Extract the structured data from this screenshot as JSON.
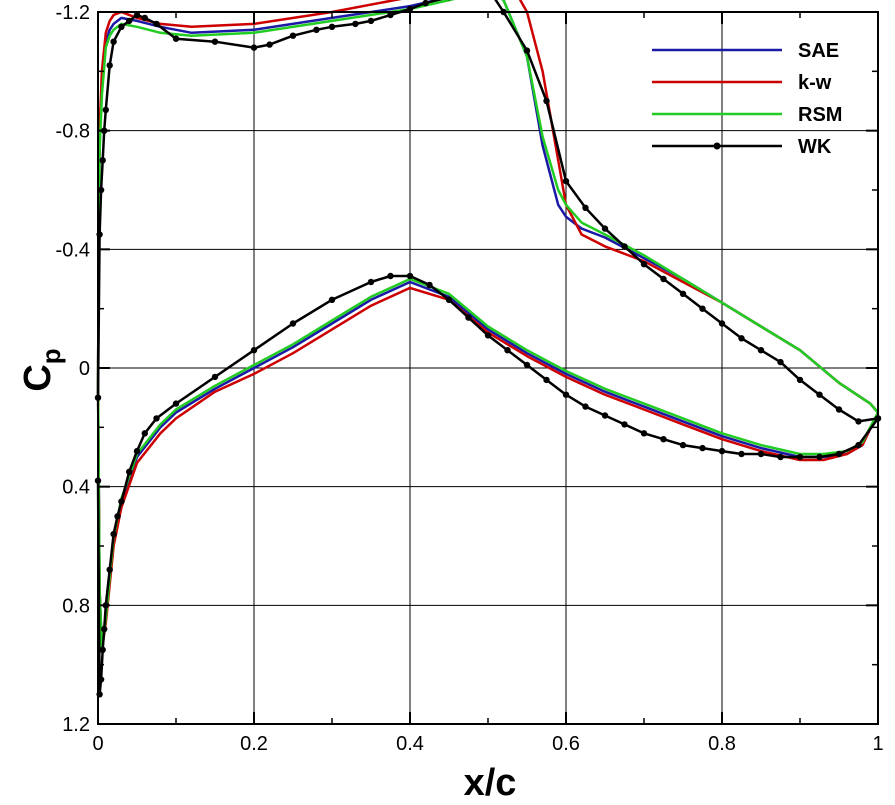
{
  "chart_data": {
    "type": "line",
    "title": "",
    "xlabel": "x/c",
    "ylabel": "C",
    "ylabel_subscript": "p",
    "xlim": [
      0,
      1
    ],
    "ylim": [
      1.2,
      -1.2
    ],
    "y_inverted": true,
    "grid": true,
    "legend_position": "top-right",
    "x_ticks": [
      0,
      0.2,
      0.4,
      0.6,
      0.8,
      1
    ],
    "x_tick_labels": [
      "0",
      "0.2",
      "0.4",
      "0.6",
      "0.8",
      "1"
    ],
    "y_ticks": [
      -1.2,
      -0.8,
      -0.4,
      0,
      0.4,
      0.8,
      1.2
    ],
    "y_tick_labels": [
      "-1.2",
      "-0.8",
      "-0.4",
      "0",
      "0.4",
      "0.8",
      "1.2"
    ],
    "series": [
      {
        "name": "SAE",
        "color": "#1a1aa6",
        "markers": false,
        "upper": {
          "x": [
            0,
            0.002,
            0.005,
            0.01,
            0.015,
            0.02,
            0.03,
            0.05,
            0.08,
            0.12,
            0.2,
            0.3,
            0.4,
            0.45,
            0.5,
            0.52,
            0.55,
            0.57,
            0.59,
            0.6,
            0.62,
            0.65,
            0.7,
            0.75,
            0.8,
            0.85,
            0.9,
            0.95,
            0.99,
            1
          ],
          "y": [
            0.05,
            -0.75,
            -0.95,
            -1.1,
            -1.14,
            -1.16,
            -1.18,
            -1.17,
            -1.15,
            -1.13,
            -1.14,
            -1.18,
            -1.22,
            -1.25,
            -1.28,
            -1.24,
            -1.05,
            -0.75,
            -0.55,
            -0.51,
            -0.47,
            -0.44,
            -0.37,
            -0.3,
            -0.22,
            -0.14,
            -0.06,
            0.05,
            0.12,
            0.15
          ]
        },
        "lower": {
          "x": [
            0,
            0.002,
            0.005,
            0.01,
            0.02,
            0.03,
            0.05,
            0.08,
            0.1,
            0.15,
            0.2,
            0.25,
            0.3,
            0.35,
            0.4,
            0.45,
            0.5,
            0.55,
            0.6,
            0.65,
            0.7,
            0.75,
            0.8,
            0.85,
            0.9,
            0.93,
            0.96,
            0.98,
            1
          ],
          "y": [
            0.05,
            0.75,
            0.95,
            0.85,
            0.58,
            0.45,
            0.3,
            0.2,
            0.15,
            0.07,
            0.0,
            -0.07,
            -0.15,
            -0.23,
            -0.29,
            -0.24,
            -0.13,
            -0.05,
            0.02,
            0.08,
            0.13,
            0.18,
            0.23,
            0.27,
            0.3,
            0.3,
            0.29,
            0.26,
            0.15
          ]
        }
      },
      {
        "name": "k-w",
        "color": "#cc0000",
        "markers": false,
        "upper": {
          "x": [
            0,
            0.002,
            0.005,
            0.01,
            0.015,
            0.02,
            0.03,
            0.05,
            0.08,
            0.12,
            0.2,
            0.3,
            0.4,
            0.45,
            0.5,
            0.52,
            0.535,
            0.55,
            0.57,
            0.59,
            0.6,
            0.62,
            0.65,
            0.7,
            0.75,
            0.8,
            0.85,
            0.9,
            0.95,
            0.99,
            1
          ],
          "y": [
            0.05,
            -0.8,
            -1.0,
            -1.13,
            -1.17,
            -1.19,
            -1.2,
            -1.18,
            -1.16,
            -1.15,
            -1.16,
            -1.2,
            -1.25,
            -1.28,
            -1.31,
            -1.3,
            -1.27,
            -1.2,
            -1.0,
            -0.7,
            -0.55,
            -0.45,
            -0.41,
            -0.36,
            -0.29,
            -0.22,
            -0.14,
            -0.06,
            0.05,
            0.12,
            0.15
          ]
        },
        "lower": {
          "x": [
            0,
            0.002,
            0.005,
            0.01,
            0.02,
            0.03,
            0.05,
            0.08,
            0.1,
            0.15,
            0.2,
            0.25,
            0.3,
            0.35,
            0.4,
            0.45,
            0.5,
            0.55,
            0.6,
            0.65,
            0.7,
            0.75,
            0.8,
            0.85,
            0.9,
            0.93,
            0.96,
            0.98,
            1
          ],
          "y": [
            0.05,
            0.75,
            0.95,
            0.86,
            0.6,
            0.47,
            0.32,
            0.22,
            0.17,
            0.08,
            0.02,
            -0.05,
            -0.13,
            -0.21,
            -0.27,
            -0.23,
            -0.12,
            -0.04,
            0.03,
            0.09,
            0.14,
            0.19,
            0.24,
            0.28,
            0.31,
            0.31,
            0.29,
            0.26,
            0.15
          ]
        }
      },
      {
        "name": "RSM",
        "color": "#22cc22",
        "markers": false,
        "upper": {
          "x": [
            0,
            0.002,
            0.005,
            0.01,
            0.015,
            0.02,
            0.03,
            0.05,
            0.08,
            0.12,
            0.2,
            0.3,
            0.4,
            0.45,
            0.5,
            0.52,
            0.55,
            0.57,
            0.59,
            0.6,
            0.62,
            0.65,
            0.7,
            0.75,
            0.8,
            0.85,
            0.9,
            0.95,
            0.99,
            1
          ],
          "y": [
            0.05,
            -0.73,
            -0.92,
            -1.08,
            -1.12,
            -1.14,
            -1.16,
            -1.15,
            -1.13,
            -1.12,
            -1.13,
            -1.17,
            -1.21,
            -1.24,
            -1.27,
            -1.24,
            -1.05,
            -0.78,
            -0.6,
            -0.55,
            -0.49,
            -0.45,
            -0.38,
            -0.3,
            -0.22,
            -0.14,
            -0.06,
            0.05,
            0.12,
            0.15
          ]
        },
        "lower": {
          "x": [
            0,
            0.002,
            0.005,
            0.01,
            0.02,
            0.03,
            0.05,
            0.08,
            0.1,
            0.15,
            0.2,
            0.25,
            0.3,
            0.35,
            0.4,
            0.45,
            0.5,
            0.55,
            0.6,
            0.65,
            0.7,
            0.75,
            0.8,
            0.85,
            0.9,
            0.93,
            0.96,
            0.98,
            1
          ],
          "y": [
            0.05,
            0.75,
            0.95,
            0.84,
            0.57,
            0.44,
            0.29,
            0.19,
            0.14,
            0.06,
            -0.01,
            -0.08,
            -0.16,
            -0.24,
            -0.3,
            -0.25,
            -0.14,
            -0.06,
            0.01,
            0.07,
            0.12,
            0.17,
            0.22,
            0.26,
            0.29,
            0.29,
            0.28,
            0.25,
            0.15
          ]
        }
      },
      {
        "name": "WK",
        "color": "#000000",
        "markers": true,
        "upper": {
          "x": [
            0,
            0.002,
            0.004,
            0.006,
            0.008,
            0.01,
            0.015,
            0.02,
            0.03,
            0.04,
            0.05,
            0.06,
            0.075,
            0.1,
            0.15,
            0.2,
            0.22,
            0.25,
            0.28,
            0.3,
            0.33,
            0.35,
            0.375,
            0.4,
            0.42,
            0.45,
            0.47,
            0.5,
            0.52,
            0.55,
            0.575,
            0.6,
            0.625,
            0.65,
            0.675,
            0.7,
            0.725,
            0.75,
            0.775,
            0.8,
            0.825,
            0.85,
            0.875,
            0.9,
            0.925,
            0.95,
            0.975,
            1
          ],
          "y": [
            0.1,
            -0.45,
            -0.6,
            -0.7,
            -0.8,
            -0.87,
            -1.02,
            -1.1,
            -1.15,
            -1.17,
            -1.19,
            -1.18,
            -1.16,
            -1.11,
            -1.1,
            -1.08,
            -1.09,
            -1.12,
            -1.14,
            -1.15,
            -1.16,
            -1.17,
            -1.19,
            -1.21,
            -1.23,
            -1.25,
            -1.26,
            -1.28,
            -1.2,
            -1.07,
            -0.9,
            -0.63,
            -0.54,
            -0.47,
            -0.41,
            -0.35,
            -0.3,
            -0.25,
            -0.2,
            -0.15,
            -0.1,
            -0.06,
            -0.02,
            0.04,
            0.09,
            0.14,
            0.18,
            0.17
          ]
        },
        "lower": {
          "x": [
            0,
            0.002,
            0.004,
            0.006,
            0.008,
            0.01,
            0.015,
            0.02,
            0.025,
            0.03,
            0.04,
            0.05,
            0.06,
            0.075,
            0.1,
            0.15,
            0.2,
            0.25,
            0.3,
            0.35,
            0.375,
            0.4,
            0.425,
            0.45,
            0.475,
            0.5,
            0.525,
            0.55,
            0.575,
            0.6,
            0.625,
            0.65,
            0.675,
            0.7,
            0.725,
            0.75,
            0.775,
            0.8,
            0.825,
            0.85,
            0.875,
            0.9,
            0.925,
            0.95,
            0.975,
            1
          ],
          "y": [
            0.38,
            1.1,
            1.05,
            0.95,
            0.88,
            0.8,
            0.68,
            0.56,
            0.5,
            0.45,
            0.35,
            0.28,
            0.22,
            0.17,
            0.12,
            0.03,
            -0.06,
            -0.15,
            -0.23,
            -0.29,
            -0.31,
            -0.31,
            -0.28,
            -0.23,
            -0.17,
            -0.11,
            -0.06,
            -0.01,
            0.04,
            0.09,
            0.13,
            0.16,
            0.19,
            0.22,
            0.24,
            0.26,
            0.27,
            0.28,
            0.29,
            0.29,
            0.3,
            0.3,
            0.3,
            0.29,
            0.26,
            0.17
          ]
        }
      }
    ]
  }
}
